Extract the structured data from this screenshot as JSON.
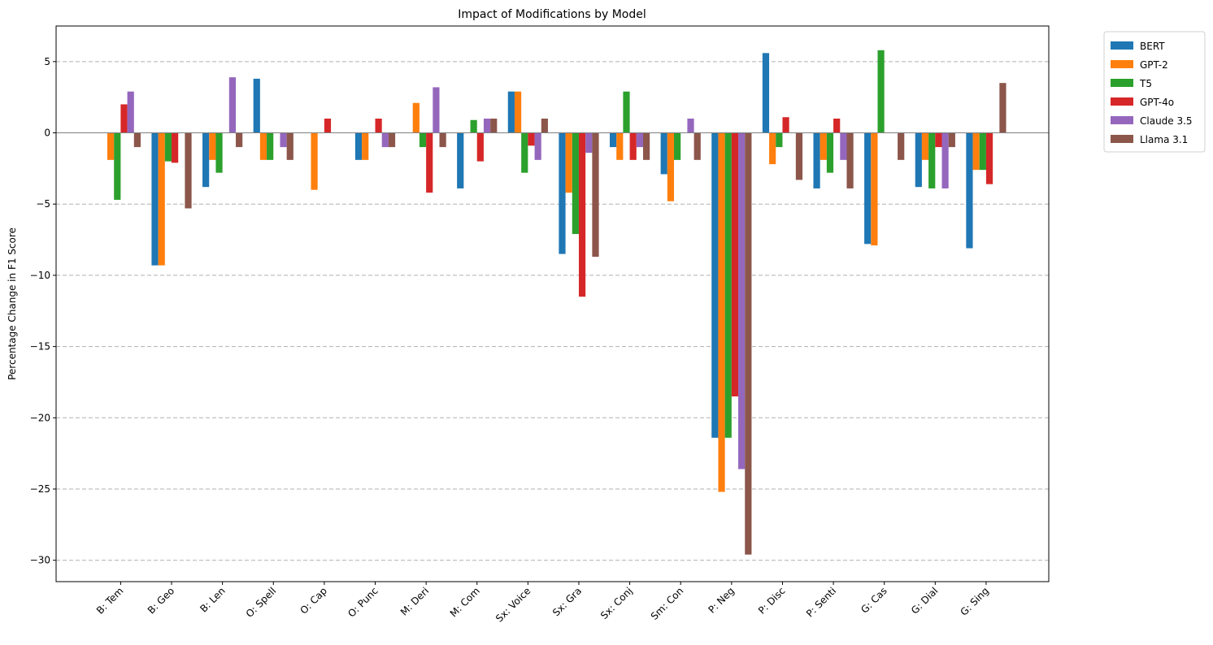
{
  "chart_data": {
    "type": "bar",
    "title": "Impact of Modifications by Model",
    "xlabel": "",
    "ylabel": "Percentage Change in F1 Score",
    "ylim": [
      -31.5,
      7.5
    ],
    "yticks": [
      5,
      0,
      -5,
      -10,
      -15,
      -20,
      -25,
      -30
    ],
    "ytick_labels": [
      "5",
      "0",
      "−5",
      "−10",
      "−15",
      "−20",
      "−25",
      "−30"
    ],
    "grid": "y-dashed",
    "legend_position": "outside-top-right",
    "categories": [
      "B: Tem",
      "B: Geo",
      "B: Len",
      "O: Spell",
      "O: Cap",
      "O: Punc",
      "M: Deri",
      "M: Com",
      "Sx: Voice",
      "Sx: Gra",
      "Sx: Conj",
      "Sm: Con",
      "P: Neg",
      "P: Disc",
      "P: Senti",
      "G: Cas",
      "G: Dial",
      "G: Sing"
    ],
    "series": [
      {
        "name": "BERT",
        "color": "#1f77b4",
        "values": [
          0,
          -9.3,
          -3.8,
          3.8,
          0,
          -1.9,
          0,
          -3.9,
          2.9,
          -8.5,
          -1.0,
          -2.9,
          -21.4,
          5.6,
          -3.9,
          -7.8,
          -3.8,
          -8.1
        ]
      },
      {
        "name": "GPT-2",
        "color": "#ff7f0e",
        "values": [
          -1.9,
          -9.3,
          -1.9,
          -1.9,
          -4.0,
          -1.9,
          2.1,
          0,
          2.9,
          -4.2,
          -1.9,
          -4.8,
          -25.2,
          -2.2,
          -1.9,
          -7.9,
          -1.9,
          -2.6
        ]
      },
      {
        "name": "T5",
        "color": "#2ca02c",
        "values": [
          -4.7,
          -2.0,
          -2.8,
          -1.9,
          0,
          0,
          -1.0,
          0.9,
          -2.8,
          -7.1,
          2.9,
          -1.9,
          -21.4,
          -1.0,
          -2.8,
          5.8,
          -3.9,
          -2.6
        ]
      },
      {
        "name": "GPT-4o",
        "color": "#d62728",
        "values": [
          2.0,
          -2.1,
          0,
          0,
          1.0,
          1.0,
          -4.2,
          -2.0,
          -0.9,
          -11.5,
          -1.9,
          0,
          -18.5,
          1.1,
          1.0,
          0,
          -1.0,
          -3.6
        ]
      },
      {
        "name": "Claude 3.5",
        "color": "#9467bd",
        "values": [
          2.9,
          0,
          3.9,
          -1.0,
          0,
          -1.0,
          3.2,
          1.0,
          -1.9,
          -1.4,
          -1.0,
          1.0,
          -23.6,
          0,
          -1.9,
          0,
          -3.9,
          0
        ]
      },
      {
        "name": "Llama 3.1",
        "color": "#8c564b",
        "values": [
          -1.0,
          -5.3,
          -1.0,
          -1.9,
          0,
          -1.0,
          -1.0,
          1.0,
          1.0,
          -8.7,
          -1.9,
          -1.9,
          -29.6,
          -3.3,
          -3.9,
          -1.9,
          -1.0,
          3.5
        ]
      }
    ]
  }
}
